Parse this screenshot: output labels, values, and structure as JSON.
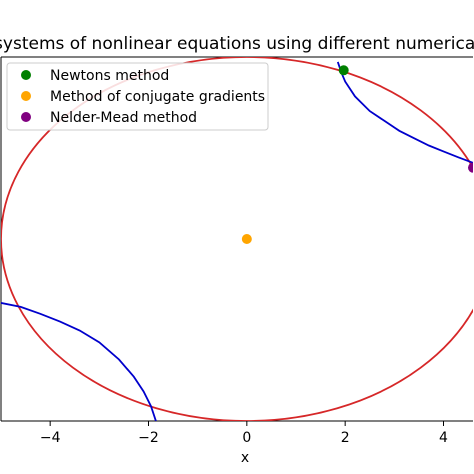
{
  "chart_data": {
    "type": "line",
    "title": "systems of nonlinear equations using different numerical",
    "xlabel": "x",
    "ylabel": "",
    "xlim": [
      -5.0,
      4.6
    ],
    "ylim": [
      -3.7,
      3.7
    ],
    "xticks": [
      -4,
      -2,
      0,
      2,
      4
    ],
    "xtick_labels": [
      "−4",
      "−2",
      "0",
      "2",
      "4"
    ],
    "grid": false,
    "legend_position": "top-left",
    "curves": [
      {
        "kind": "ellipse",
        "color": "#d62728",
        "center": [
          0,
          0
        ],
        "rx": 5.0,
        "ry": 3.7
      },
      {
        "kind": "hyperbola-branch",
        "color": "#0000cc",
        "k": 9.0,
        "x": [
          1.85,
          1.9,
          1.95,
          2.0,
          2.2,
          2.5,
          2.8,
          3.1,
          3.4,
          3.7,
          4.0,
          4.3,
          4.6
        ],
        "y": [
          3.6,
          3.45,
          3.32,
          3.2,
          2.9,
          2.6,
          2.4,
          2.2,
          2.05,
          1.9,
          1.78,
          1.66,
          1.55
        ]
      },
      {
        "kind": "hyperbola-branch",
        "color": "#0000cc",
        "k": 9.0,
        "x": [
          -5.0,
          -4.6,
          -4.2,
          -3.8,
          -3.4,
          -3.0,
          -2.6,
          -2.3,
          -2.1,
          -1.95,
          -1.85
        ],
        "y": [
          -1.3,
          -1.38,
          -1.52,
          -1.68,
          -1.86,
          -2.1,
          -2.45,
          -2.8,
          -3.1,
          -3.4,
          -3.7
        ]
      }
    ],
    "series": [
      {
        "name": "Newtons method",
        "color": "#008000",
        "x": [
          1.97
        ],
        "y": [
          3.43
        ]
      },
      {
        "name": "Method of conjugate gradients",
        "color": "#ffa500",
        "x": [
          0.0
        ],
        "y": [
          0.0
        ]
      },
      {
        "name": "Nelder-Mead method",
        "color": "#800080",
        "x": [
          4.6
        ],
        "y": [
          1.45
        ]
      }
    ]
  }
}
